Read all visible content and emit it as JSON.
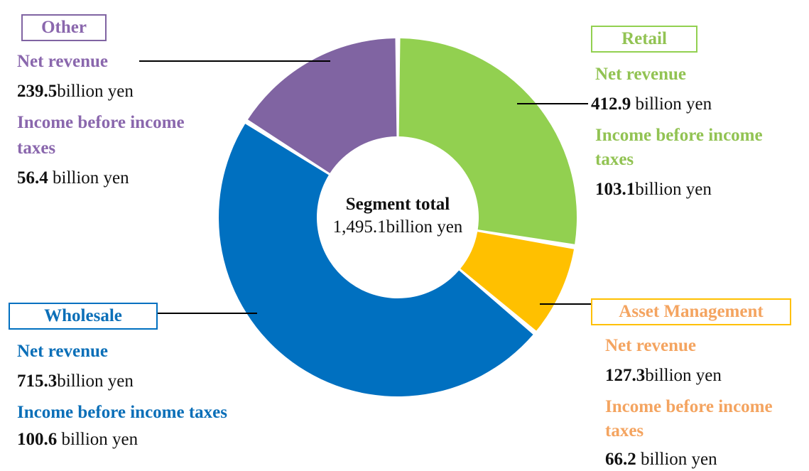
{
  "colors": {
    "retail": "#92d050",
    "asset_management": "#ffc000",
    "wholesale": "#0070c0",
    "other": "#8064a2",
    "retail_text": "#92c353",
    "asset_text": "#f4a460",
    "wholesale_text": "#0b6fb8",
    "other_text": "#8a67ad"
  },
  "center": {
    "title": "Segment total",
    "value": "1,495.1billion yen"
  },
  "segments": {
    "retail": {
      "name": "Retail",
      "rev_label": "Net revenue",
      "rev_value": "412.9",
      "rev_unit": " billion yen",
      "inc_label_1": "Income before income",
      "inc_label_2": "taxes",
      "inc_value": "103.1",
      "inc_unit": "billion yen"
    },
    "asset_management": {
      "name": "Asset Management",
      "rev_label": "Net revenue",
      "rev_value": "127.3",
      "rev_unit": "billion yen",
      "inc_label_1": "Income before income",
      "inc_label_2": "taxes",
      "inc_value": "66.2",
      "inc_unit": " billion yen"
    },
    "wholesale": {
      "name": "Wholesale",
      "rev_label": "Net revenue",
      "rev_value": "715.3",
      "rev_unit": "billion yen",
      "inc_label": "Income before income taxes",
      "inc_value": "100.6",
      "inc_unit": " billion yen"
    },
    "other": {
      "name": "Other",
      "rev_label": "Net revenue",
      "rev_value": "239.5",
      "rev_unit": "billion yen",
      "inc_label_1": "Income before income",
      "inc_label_2": "taxes",
      "inc_value": "56.4",
      "inc_unit": " billion yen"
    }
  },
  "chart_data": {
    "type": "pie",
    "style": "donut",
    "categories": [
      "Retail",
      "Asset Management",
      "Wholesale",
      "Other"
    ],
    "values": [
      412.9,
      127.3,
      715.3,
      239.5
    ],
    "units": "billion yen",
    "total": 1495.1,
    "start_angle_deg": 0,
    "direction": "clockwise",
    "income_before_income_taxes": [
      103.1,
      66.2,
      100.6,
      56.4
    ],
    "legend": "none"
  }
}
